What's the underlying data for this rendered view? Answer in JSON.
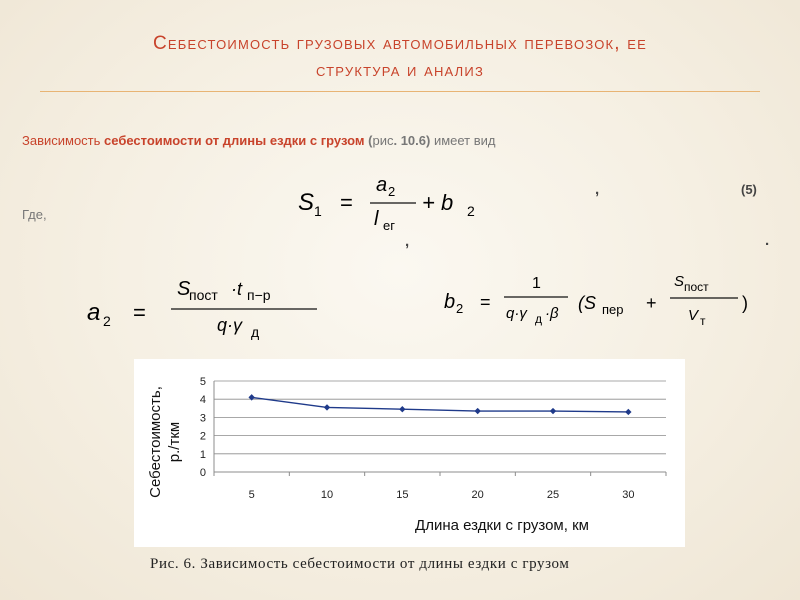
{
  "slide": {
    "title_line1": "Себестоимость грузовых автомобильных перевозок, ее",
    "title_line2": "структура и анализ"
  },
  "text": {
    "lead_1": "Зависимость ",
    "lead_2": "себестоимости от длины ездки с грузом",
    "lead_3": " (",
    "lead_4": "рис",
    "lead_5": ". 10.6) ",
    "lead_6": "имеет вид",
    "where": "Где,",
    "comma": ",",
    "period": ".",
    "equation_number": "(5)"
  },
  "formulas": {
    "s1": {
      "lhs": "S",
      "lhs_sub": "1",
      "eq": "=",
      "num": "a",
      "num_sub": "2",
      "den": "l",
      "den_sub": "ег",
      "plus_b": "+ b",
      "b_sub": "2"
    },
    "a2": {
      "lhs": "a",
      "lhs_sub": "2",
      "eq": "=",
      "num_s": "S",
      "num_s_sub": "пост",
      "num_t": "·t",
      "num_t_sub": "п−р",
      "den": "q·γ",
      "den_sub": "д"
    },
    "b2": {
      "lhs": "b",
      "lhs_sub": "2",
      "eq": "=",
      "frac_num": "1",
      "frac_den": "q·γ",
      "frac_den_sub": "д",
      "frac_den_tail": "·β",
      "open": "(S",
      "open_sub": "пер",
      "plus": "+",
      "inner_num": "S",
      "inner_num_sub": "пост",
      "inner_den": "V",
      "inner_den_sub": "т",
      "close": ")"
    }
  },
  "chart_data": {
    "type": "line",
    "x": [
      5,
      10,
      15,
      20,
      25,
      30
    ],
    "series": [
      {
        "values": [
          4.1,
          3.55,
          3.45,
          3.35,
          3.35,
          3.3
        ]
      }
    ],
    "xlabel": "Длина ездки с грузом, км",
    "ylabel": "Себестоимость, р./ткм",
    "ylabel_line1": "Себестоимость,",
    "ylabel_line2": "р./ткм",
    "ylim": [
      0,
      5
    ],
    "yticks": [
      "0",
      "1",
      "2",
      "3",
      "4",
      "5"
    ],
    "xtick_labels": [
      "5",
      "10",
      "15",
      "20",
      "25",
      "30"
    ],
    "grid": true,
    "colors": {
      "line": "#1f3a8a",
      "grid": "#8c8c8c"
    }
  },
  "caption": "Рис. 6. Зависимость себестоимости от длины ездки с грузом"
}
